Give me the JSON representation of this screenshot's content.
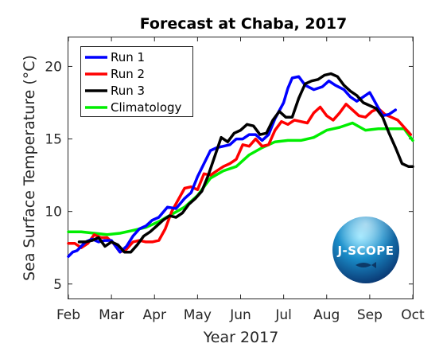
{
  "chart_data": {
    "type": "line",
    "title": "Forecast at Chaba, 2017",
    "xlabel": "Year 2017",
    "ylabel": "Sea Surface Temperature (°C)",
    "xlim": [
      0,
      8
    ],
    "ylim": [
      4,
      22
    ],
    "xticks": [
      {
        "v": 0,
        "label": "Feb"
      },
      {
        "v": 1,
        "label": "Mar"
      },
      {
        "v": 2,
        "label": "Apr"
      },
      {
        "v": 3,
        "label": "May"
      },
      {
        "v": 4,
        "label": "Jun"
      },
      {
        "v": 5,
        "label": "Jul"
      },
      {
        "v": 6,
        "label": "Aug"
      },
      {
        "v": 7,
        "label": "Sep"
      },
      {
        "v": 8,
        "label": "Oct"
      }
    ],
    "yticks": [
      {
        "v": 5,
        "label": "5"
      },
      {
        "v": 10,
        "label": "10"
      },
      {
        "v": 15,
        "label": "15"
      },
      {
        "v": 20,
        "label": "20"
      }
    ],
    "grid": false,
    "legend_position": "top-left",
    "series": [
      {
        "name": "Run 1",
        "color": "#0000ff",
        "x": [
          0,
          0.1,
          0.2,
          0.3,
          0.4,
          0.55,
          0.7,
          0.85,
          1.0,
          1.1,
          1.2,
          1.35,
          1.5,
          1.65,
          1.8,
          1.95,
          2.1,
          2.3,
          2.5,
          2.7,
          2.85,
          3.0,
          3.15,
          3.3,
          3.45,
          3.6,
          3.75,
          3.9,
          4.05,
          4.2,
          4.35,
          4.5,
          4.65,
          4.8,
          5.0,
          5.1,
          5.2,
          5.35,
          5.5,
          5.7,
          5.9,
          6.05,
          6.2,
          6.4,
          6.55,
          6.7,
          6.85,
          7.0,
          7.15,
          7.3,
          7.45,
          7.6
        ],
        "y": [
          6.9,
          7.2,
          7.3,
          7.6,
          7.9,
          8.1,
          7.9,
          8.0,
          8.0,
          7.6,
          7.2,
          7.6,
          8.3,
          8.8,
          9.0,
          9.4,
          9.6,
          10.3,
          10.2,
          10.9,
          11.3,
          12.4,
          13.3,
          14.2,
          14.4,
          14.5,
          14.6,
          15.0,
          15.0,
          15.3,
          15.3,
          14.9,
          15.3,
          16.4,
          17.5,
          18.5,
          19.2,
          19.3,
          18.7,
          18.4,
          18.6,
          19.0,
          18.7,
          18.4,
          17.9,
          17.6,
          17.9,
          18.2,
          17.4,
          16.6,
          16.7,
          17.0
        ]
      },
      {
        "name": "Run 2",
        "color": "#ff0000",
        "x": [
          0,
          0.15,
          0.3,
          0.45,
          0.6,
          0.75,
          0.9,
          1.05,
          1.2,
          1.35,
          1.5,
          1.65,
          1.8,
          1.95,
          2.1,
          2.25,
          2.4,
          2.55,
          2.7,
          2.85,
          3.0,
          3.15,
          3.3,
          3.45,
          3.6,
          3.75,
          3.9,
          4.05,
          4.2,
          4.35,
          4.5,
          4.65,
          4.8,
          4.95,
          5.1,
          5.25,
          5.4,
          5.55,
          5.7,
          5.85,
          6.0,
          6.15,
          6.3,
          6.45,
          6.6,
          6.75,
          6.9,
          7.05,
          7.2,
          7.35,
          7.5,
          7.65,
          7.8,
          7.95
        ],
        "y": [
          7.8,
          7.8,
          7.5,
          7.8,
          8.4,
          8.2,
          8.2,
          7.8,
          7.2,
          7.4,
          7.9,
          8.0,
          7.9,
          7.9,
          8.0,
          8.8,
          10.0,
          10.8,
          11.6,
          11.7,
          11.5,
          12.6,
          12.5,
          12.8,
          13.1,
          13.3,
          13.6,
          14.6,
          14.5,
          15.0,
          14.5,
          14.6,
          15.6,
          16.2,
          16.0,
          16.3,
          16.2,
          16.1,
          16.8,
          17.2,
          16.6,
          16.3,
          16.8,
          17.4,
          17.0,
          16.6,
          16.5,
          16.9,
          17.1,
          16.7,
          16.5,
          16.3,
          15.8,
          15.3
        ]
      },
      {
        "name": "Run 3",
        "color": "#000000",
        "x": [
          0.25,
          0.4,
          0.55,
          0.7,
          0.85,
          1.0,
          1.15,
          1.3,
          1.45,
          1.6,
          1.75,
          1.9,
          2.05,
          2.2,
          2.35,
          2.5,
          2.65,
          2.8,
          2.95,
          3.1,
          3.25,
          3.4,
          3.55,
          3.7,
          3.85,
          4.0,
          4.15,
          4.3,
          4.45,
          4.6,
          4.75,
          4.9,
          5.05,
          5.2,
          5.35,
          5.5,
          5.65,
          5.8,
          5.95,
          6.1,
          6.25,
          6.4,
          6.55,
          6.7,
          6.85,
          7.0,
          7.15,
          7.3,
          7.45,
          7.6,
          7.75,
          7.9,
          8.0
        ],
        "y": [
          7.9,
          7.9,
          8.0,
          8.2,
          7.6,
          7.9,
          7.7,
          7.2,
          7.2,
          7.7,
          8.3,
          8.6,
          9.0,
          9.4,
          9.7,
          9.6,
          9.9,
          10.5,
          10.9,
          11.4,
          12.5,
          13.8,
          15.1,
          14.8,
          15.4,
          15.6,
          16.0,
          15.9,
          15.3,
          15.4,
          16.3,
          16.9,
          16.5,
          16.5,
          17.8,
          18.8,
          19.0,
          19.1,
          19.4,
          19.5,
          19.3,
          18.7,
          18.3,
          18.0,
          17.5,
          17.3,
          17.1,
          16.5,
          15.4,
          14.4,
          13.3,
          13.1,
          13.1
        ]
      },
      {
        "name": "Climatology",
        "color": "#00ee00",
        "x": [
          0,
          0.3,
          0.6,
          0.9,
          1.2,
          1.5,
          1.8,
          2.1,
          2.4,
          2.7,
          3.0,
          3.3,
          3.6,
          3.9,
          4.2,
          4.5,
          4.8,
          5.1,
          5.4,
          5.7,
          6.0,
          6.3,
          6.6,
          6.9,
          7.2,
          7.5,
          7.8,
          8.0
        ],
        "y": [
          8.6,
          8.6,
          8.5,
          8.4,
          8.5,
          8.7,
          8.9,
          9.3,
          9.8,
          10.3,
          11.1,
          12.3,
          12.8,
          13.1,
          13.9,
          14.4,
          14.8,
          14.9,
          14.9,
          15.1,
          15.6,
          15.8,
          16.1,
          15.6,
          15.7,
          15.7,
          15.7,
          14.9
        ]
      }
    ]
  },
  "logo": {
    "text": "J-SCOPE"
  }
}
